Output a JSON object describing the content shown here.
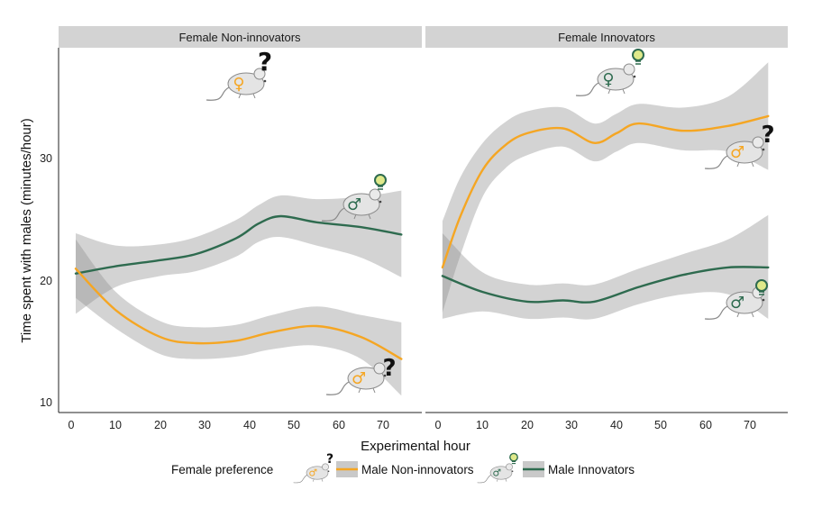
{
  "chart_data": {
    "type": "line",
    "xlabel": "Experimental hour",
    "ylabel": "Time spent with males (minutes/hour)",
    "x_ticks": [
      0,
      10,
      20,
      30,
      40,
      50,
      60,
      70
    ],
    "y_ticks": [
      10,
      20,
      30
    ],
    "xlim": [
      -1.5,
      76
    ],
    "ylim": [
      9.5,
      38.5
    ],
    "legend": {
      "title": "Female preference",
      "position": "bottom",
      "entries": [
        {
          "name": "Male Non-innovators",
          "color": "#F5A623"
        },
        {
          "name": "Male Innovators",
          "color": "#2E6B4F"
        }
      ]
    },
    "panels": [
      {
        "title": "Female Non-innovators",
        "series": [
          {
            "name": "Male Innovators",
            "color": "#2E6B4F",
            "x": [
              1,
              10,
              20,
              28,
              37,
              42,
              47,
              55,
              65,
              74
            ],
            "y": [
              20.5,
              21.1,
              21.6,
              22.1,
              23.4,
              24.6,
              25.2,
              24.7,
              24.3,
              23.7
            ],
            "lower": [
              17.2,
              19.4,
              20.3,
              20.7,
              21.9,
              23.1,
              23.5,
              22.8,
              21.8,
              20.2
            ],
            "upper": [
              23.8,
              22.8,
              22.9,
              23.5,
              24.9,
              26.1,
              26.9,
              26.6,
              26.8,
              27.3
            ]
          },
          {
            "name": "Male Non-innovators",
            "color": "#F5A623",
            "x": [
              1,
              10,
              20,
              28,
              37,
              45,
              55,
              65,
              74
            ],
            "y": [
              20.9,
              17.5,
              15.3,
              14.8,
              15.0,
              15.7,
              16.2,
              15.3,
              13.5
            ],
            "lower": [
              18.5,
              16.0,
              13.9,
              13.5,
              13.7,
              14.3,
              14.6,
              13.5,
              10.5
            ],
            "upper": [
              23.3,
              19.0,
              16.6,
              16.1,
              16.3,
              17.1,
              17.8,
              17.1,
              16.5
            ]
          }
        ]
      },
      {
        "title": "Female Innovators",
        "series": [
          {
            "name": "Male Non-innovators",
            "color": "#F5A623",
            "x": [
              1,
              5,
              10,
              15,
              20,
              28,
              35,
              40,
              45,
              55,
              65,
              74
            ],
            "y": [
              21.0,
              25.2,
              29.0,
              31.0,
              32.0,
              32.4,
              31.2,
              32.0,
              32.8,
              32.2,
              32.6,
              33.4
            ],
            "lower": [
              17.3,
              22.0,
              26.8,
              29.1,
              30.2,
              30.9,
              29.7,
              30.5,
              31.2,
              30.6,
              30.5,
              29.0
            ],
            "upper": [
              24.8,
              28.4,
              31.2,
              32.9,
              33.8,
              34.1,
              32.8,
              33.6,
              34.4,
              34.1,
              35.0,
              37.8
            ]
          },
          {
            "name": "Male Innovators",
            "color": "#2E6B4F",
            "x": [
              1,
              10,
              20,
              28,
              35,
              45,
              55,
              65,
              74
            ],
            "y": [
              20.3,
              19.0,
              18.2,
              18.3,
              18.2,
              19.4,
              20.4,
              21.0,
              21.0
            ],
            "lower": [
              16.8,
              17.4,
              16.8,
              16.9,
              16.8,
              18.0,
              18.8,
              18.8,
              16.8
            ],
            "upper": [
              23.8,
              20.6,
              19.6,
              19.7,
              19.6,
              20.9,
              22.1,
              23.3,
              25.3
            ]
          }
        ]
      }
    ]
  }
}
